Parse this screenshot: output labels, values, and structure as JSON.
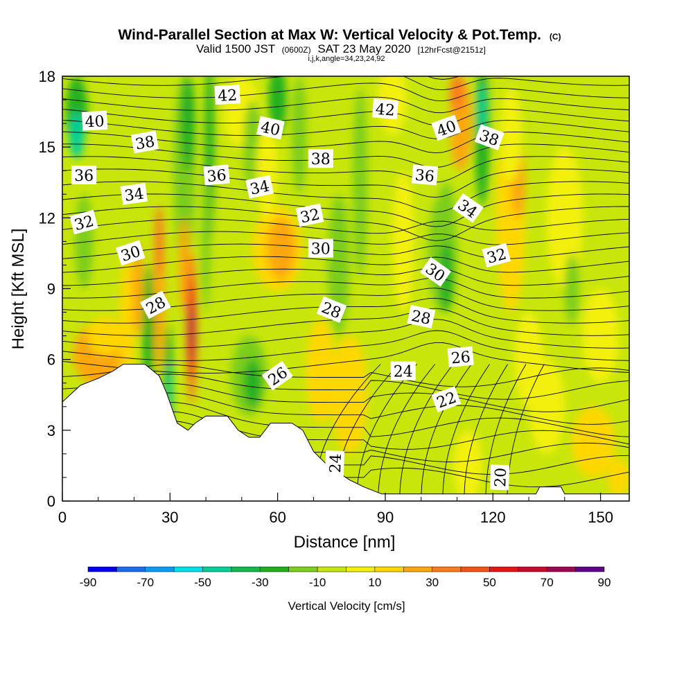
{
  "chart_data": {
    "type": "heatmap",
    "title": "Wind-Parallel Section at Max W: Vertical Velocity & Pot.Temp.",
    "copyright": "(C)",
    "subtitle_main": "Valid 1500 JST",
    "subtitle_utc": "(0600Z)",
    "subtitle_date": "SAT 23 May 2020",
    "subtitle_fcst": "[12hrFcst@2151z]",
    "subtitle_params": "i,j,k,angle=34,23,24,92",
    "xlabel": "Distance [nm]",
    "ylabel": "Height [Kft MSL]",
    "xlim": [
      0,
      158
    ],
    "ylim": [
      0,
      18
    ],
    "xticks": [
      0,
      30,
      60,
      90,
      120,
      150
    ],
    "yticks": [
      0,
      3,
      6,
      9,
      12,
      15,
      18
    ],
    "grid": false,
    "colorbar": {
      "label": "Vertical Velocity [cm/s]",
      "levels": [
        -90,
        -80,
        -70,
        -60,
        -50,
        -40,
        -30,
        -20,
        -10,
        0,
        10,
        20,
        30,
        40,
        50,
        60,
        70,
        80,
        90
      ],
      "tick_labels": [
        -90,
        -70,
        -50,
        -30,
        -10,
        10,
        30,
        50,
        70,
        90
      ],
      "colors": [
        "#0000ee",
        "#1d6af4",
        "#0a9cf5",
        "#00e0ea",
        "#00cf9a",
        "#14b84a",
        "#22b021",
        "#7ccd1c",
        "#c8e60b",
        "#f4f00a",
        "#ffd700",
        "#fca70b",
        "#fb7c1b",
        "#f55215",
        "#e91515",
        "#c90a29",
        "#9e0650",
        "#60048a"
      ]
    },
    "terrain": [
      [
        0,
        4.2
      ],
      [
        5,
        4.9
      ],
      [
        10,
        5.2
      ],
      [
        14,
        5.5
      ],
      [
        17,
        5.8
      ],
      [
        23,
        5.8
      ],
      [
        27,
        5.3
      ],
      [
        29,
        4.6
      ],
      [
        32,
        3.3
      ],
      [
        35,
        3.0
      ],
      [
        37,
        3.3
      ],
      [
        40,
        3.6
      ],
      [
        43,
        3.6
      ],
      [
        46,
        3.6
      ],
      [
        49,
        3.0
      ],
      [
        52,
        2.7
      ],
      [
        55,
        2.7
      ],
      [
        58,
        3.3
      ],
      [
        64,
        3.3
      ],
      [
        67,
        3.0
      ],
      [
        70,
        2.1
      ],
      [
        74,
        1.5
      ],
      [
        77,
        1.2
      ],
      [
        80,
        0.9
      ],
      [
        84,
        0.6
      ],
      [
        89,
        0.3
      ],
      [
        108,
        0.3
      ],
      [
        132,
        0.3
      ],
      [
        133,
        0.6
      ],
      [
        139,
        0.6
      ],
      [
        140,
        0.3
      ],
      [
        158,
        0.3
      ]
    ],
    "contour_labels": [
      {
        "text": "40",
        "x": 9,
        "y": 16.1,
        "angle": -3
      },
      {
        "text": "42",
        "x": 46,
        "y": 17.2,
        "angle": -3
      },
      {
        "text": "40",
        "x": 58,
        "y": 15.8,
        "angle": 12
      },
      {
        "text": "42",
        "x": 90,
        "y": 16.6,
        "angle": 5
      },
      {
        "text": "40",
        "x": 107,
        "y": 15.8,
        "angle": -20
      },
      {
        "text": "38",
        "x": 119,
        "y": 15.4,
        "angle": 20
      },
      {
        "text": "38",
        "x": 23,
        "y": 15.2,
        "angle": -10
      },
      {
        "text": "38",
        "x": 72,
        "y": 14.5,
        "angle": 0
      },
      {
        "text": "36",
        "x": 6,
        "y": 13.8,
        "angle": 0
      },
      {
        "text": "36",
        "x": 43,
        "y": 13.8,
        "angle": -5
      },
      {
        "text": "36",
        "x": 101,
        "y": 13.8,
        "angle": 5
      },
      {
        "text": "34",
        "x": 20,
        "y": 13.0,
        "angle": -8
      },
      {
        "text": "34",
        "x": 55,
        "y": 13.3,
        "angle": -12
      },
      {
        "text": "34",
        "x": 113,
        "y": 12.4,
        "angle": 35
      },
      {
        "text": "32",
        "x": 6,
        "y": 11.8,
        "angle": -15
      },
      {
        "text": "32",
        "x": 69,
        "y": 12.1,
        "angle": -12
      },
      {
        "text": "32",
        "x": 121,
        "y": 10.4,
        "angle": -15
      },
      {
        "text": "30",
        "x": 19,
        "y": 10.5,
        "angle": -18
      },
      {
        "text": "30",
        "x": 72,
        "y": 10.7,
        "angle": 0
      },
      {
        "text": "30",
        "x": 104,
        "y": 9.7,
        "angle": 35
      },
      {
        "text": "28",
        "x": 26,
        "y": 8.3,
        "angle": -28
      },
      {
        "text": "28",
        "x": 75,
        "y": 8.1,
        "angle": 22
      },
      {
        "text": "28",
        "x": 100,
        "y": 7.8,
        "angle": 12
      },
      {
        "text": "26",
        "x": 60,
        "y": 5.3,
        "angle": -35
      },
      {
        "text": "26",
        "x": 111,
        "y": 6.1,
        "angle": -5
      },
      {
        "text": "24",
        "x": 95,
        "y": 5.5,
        "angle": 0
      },
      {
        "text": "24",
        "x": 76,
        "y": 1.6,
        "angle": -88
      },
      {
        "text": "22",
        "x": 107,
        "y": 4.3,
        "angle": -20
      },
      {
        "text": "20",
        "x": 122,
        "y": 1.0,
        "angle": -88
      }
    ]
  }
}
